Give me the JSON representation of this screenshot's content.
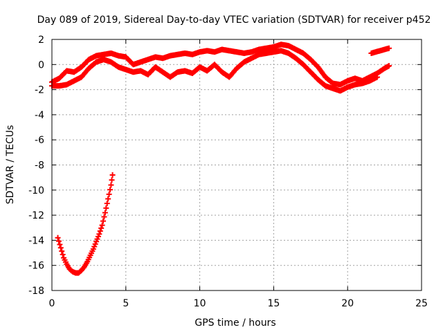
{
  "chart_data": {
    "type": "scatter",
    "title": "Day 089 of 2019, Sidereal Day-to-day VTEC variation (SDTVAR) for receiver p452",
    "xlabel": "GPS time / hours",
    "ylabel": "SDTVAR / TECUs",
    "xlim": [
      0,
      25
    ],
    "ylim": [
      -18,
      2
    ],
    "x_ticks": [
      0,
      5,
      10,
      15,
      20,
      25
    ],
    "x_tick_labels": [
      "0",
      "5",
      "10",
      "15",
      "20",
      "25"
    ],
    "y_ticks": [
      2,
      0,
      -2,
      -4,
      -6,
      -8,
      -10,
      -12,
      -14,
      -16,
      -18
    ],
    "y_tick_labels": [
      "2",
      "0",
      "-2",
      "-4",
      "-6",
      "-8",
      "-10",
      "-12",
      "-14",
      "-16",
      "-18"
    ],
    "grid": true,
    "marker": "plus",
    "color": "#ff0000",
    "series": [
      {
        "name": "upper-envelope",
        "x": [
          0.0,
          0.5,
          1.0,
          1.5,
          2.0,
          2.5,
          3.0,
          3.5,
          4.0,
          4.5,
          5.0,
          5.5,
          6.0,
          6.5,
          7.0,
          7.5,
          8.0,
          8.5,
          9.0,
          9.5,
          10.0,
          10.5,
          11.0,
          11.5,
          12.0,
          12.5,
          13.0,
          13.5,
          14.0,
          14.5,
          15.0,
          15.5,
          16.0,
          16.5,
          17.0,
          17.5,
          18.0,
          18.5,
          19.0,
          19.5,
          20.0,
          20.5,
          21.0,
          21.5,
          22.0,
          22.5,
          22.8
        ],
        "y": [
          -1.4,
          -1.1,
          -0.5,
          -0.6,
          -0.2,
          0.4,
          0.7,
          0.8,
          0.9,
          0.7,
          0.6,
          0.0,
          0.2,
          0.4,
          0.6,
          0.5,
          0.7,
          0.8,
          0.9,
          0.8,
          1.0,
          1.1,
          1.0,
          1.2,
          1.1,
          1.0,
          0.9,
          1.0,
          1.2,
          1.3,
          1.4,
          1.6,
          1.5,
          1.2,
          0.9,
          0.4,
          -0.2,
          -1.0,
          -1.5,
          -1.6,
          -1.3,
          -1.1,
          -1.3,
          -1.0,
          -0.7,
          -0.3,
          -0.1
        ]
      },
      {
        "name": "lower-envelope",
        "x": [
          0.0,
          0.5,
          1.0,
          1.5,
          2.0,
          2.5,
          3.0,
          3.5,
          4.0,
          4.5,
          5.0,
          5.5,
          6.0,
          6.5,
          7.0,
          7.5,
          8.0,
          8.5,
          9.0,
          9.5,
          10.0,
          10.5,
          11.0,
          11.5,
          12.0,
          12.5,
          13.0,
          13.5,
          14.0,
          14.5,
          15.0,
          15.5,
          16.0,
          16.5,
          17.0,
          17.5,
          18.0,
          18.5,
          19.0,
          19.5,
          20.0,
          20.5,
          21.0,
          21.5,
          22.0
        ],
        "y": [
          -1.7,
          -1.7,
          -1.6,
          -1.3,
          -1.0,
          -0.3,
          0.2,
          0.4,
          0.2,
          -0.2,
          -0.4,
          -0.6,
          -0.5,
          -0.8,
          -0.2,
          -0.6,
          -1.0,
          -0.6,
          -0.5,
          -0.7,
          -0.2,
          -0.5,
          0.0,
          -0.6,
          -1.0,
          -0.3,
          0.2,
          0.5,
          0.8,
          0.9,
          1.0,
          1.1,
          0.9,
          0.5,
          0.0,
          -0.6,
          -1.2,
          -1.7,
          -1.9,
          -2.1,
          -1.8,
          -1.6,
          -1.5,
          -1.3,
          -1.0
        ]
      },
      {
        "name": "late-segment",
        "x": [
          21.6,
          21.9,
          22.2,
          22.5,
          22.8
        ],
        "y": [
          0.9,
          1.0,
          1.1,
          1.2,
          1.3
        ]
      },
      {
        "name": "early-dip",
        "x": [
          0.4,
          0.6,
          0.8,
          1.0,
          1.2,
          1.4,
          1.6,
          1.8,
          2.0,
          2.2,
          2.4,
          2.6,
          2.8,
          3.0,
          3.2,
          3.4,
          3.6,
          3.8,
          4.0,
          4.1
        ],
        "y": [
          -13.8,
          -14.6,
          -15.4,
          -15.9,
          -16.3,
          -16.5,
          -16.6,
          -16.6,
          -16.4,
          -16.1,
          -15.7,
          -15.2,
          -14.7,
          -14.1,
          -13.5,
          -12.8,
          -11.8,
          -10.7,
          -9.6,
          -8.8
        ]
      }
    ]
  }
}
